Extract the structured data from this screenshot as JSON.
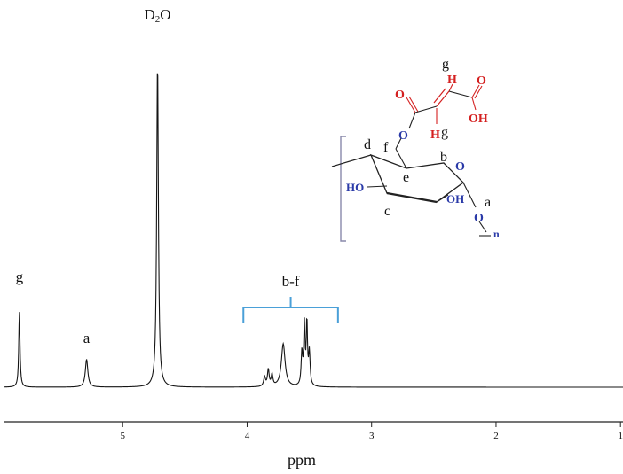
{
  "chart_data": {
    "type": "line",
    "title": "",
    "xlabel": "ppm",
    "ylabel": "",
    "x_reversed": true,
    "xlim": [
      5.95,
      0.98
    ],
    "ylim": [
      0,
      1
    ],
    "x_ticks": [
      {
        "value": 5,
        "label": "5"
      },
      {
        "value": 4,
        "label": "4"
      },
      {
        "value": 3,
        "label": "3"
      },
      {
        "value": 2,
        "label": "2"
      },
      {
        "value": 1,
        "label": "1"
      }
    ],
    "peaks": [
      {
        "ppm": 5.83,
        "height": 0.23,
        "width": 0.006
      },
      {
        "ppm": 5.29,
        "height": 0.084,
        "width": 0.012
      },
      {
        "ppm": 4.72,
        "height": 0.99,
        "width": 0.008
      },
      {
        "ppm": 3.86,
        "height": 0.028,
        "width": 0.009
      },
      {
        "ppm": 3.83,
        "height": 0.05,
        "width": 0.008
      },
      {
        "ppm": 3.8,
        "height": 0.035,
        "width": 0.008
      },
      {
        "ppm": 3.71,
        "height": 0.13,
        "width": 0.018
      },
      {
        "ppm": 3.56,
        "height": 0.1,
        "width": 0.007
      },
      {
        "ppm": 3.54,
        "height": 0.18,
        "width": 0.006
      },
      {
        "ppm": 3.52,
        "height": 0.19,
        "width": 0.006
      },
      {
        "ppm": 3.5,
        "height": 0.1,
        "width": 0.007
      }
    ],
    "peak_labels": [
      {
        "text": "g",
        "ppm": 5.83
      },
      {
        "text": "a",
        "ppm": 5.29
      },
      {
        "text": "D",
        "sub": "2",
        "tail": "O",
        "ppm": 4.72
      }
    ],
    "bracket": {
      "label": "b-f",
      "from_ppm": 4.03,
      "to_ppm": 3.27
    }
  },
  "structure": {
    "labels": {
      "a": "a",
      "b": "b",
      "c": "c",
      "d": "d",
      "e": "e",
      "f": "f",
      "g_top": "g",
      "g_h": "g"
    },
    "atoms": {
      "o1": "O",
      "o_ring": "O",
      "o_link": "O",
      "o_glyc": "O",
      "oh_acid": "OH",
      "ho": "HO",
      "oh": "OH",
      "h1": "H",
      "h2": "H"
    },
    "repeat": "n",
    "colors": {
      "acid_group": "#d42020",
      "hetero_atom": "#2a3aa8",
      "bracket": "#4aa0d8"
    }
  }
}
